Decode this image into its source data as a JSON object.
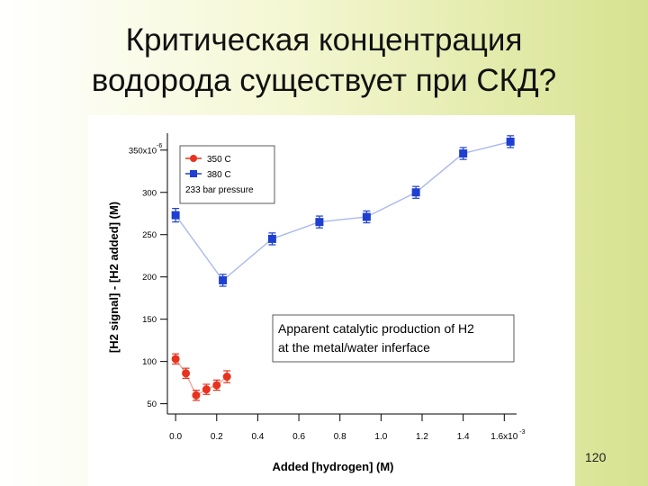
{
  "slide": {
    "title_line1": "Критическая концентрация",
    "title_line2": "водорода существует при СКД?",
    "page_number": "120"
  },
  "colors": {
    "series_350": "#e8321e",
    "series_380": "#1f3fd0",
    "line_380": "#a9b8ee",
    "line_350": "#f2a79b"
  },
  "chart_data": {
    "type": "scatter",
    "xlabel": "Added [hydrogen] (M)",
    "ylabel": "[H2 signal] - [H2 added] (M)",
    "x_ticks": [
      "0.0",
      "0.2",
      "0.4",
      "0.6",
      "0.8",
      "1.0",
      "1.2",
      "1.4",
      "1.6x10"
    ],
    "x_tick_values": [
      0.0,
      0.2,
      0.4,
      0.6,
      0.8,
      1.0,
      1.2,
      1.4,
      1.6
    ],
    "x_exponent": "-3",
    "y_ticks": [
      "50",
      "100",
      "150",
      "200",
      "250",
      "300",
      "350x10"
    ],
    "y_tick_values": [
      50,
      100,
      150,
      200,
      250,
      300,
      350
    ],
    "y_exponent": "-6",
    "xlim": [
      -0.04,
      1.66
    ],
    "ylim": [
      40,
      370
    ],
    "legend": {
      "entries": [
        "350 C",
        "380 C"
      ],
      "note": "233 bar pressure",
      "position": "top-left"
    },
    "annotation": [
      "Apparent catalytic production of H2",
      "at the metal/water inferface"
    ],
    "series": [
      {
        "name": "350 C",
        "x": [
          0.0,
          0.05,
          0.1,
          0.15,
          0.2,
          0.25
        ],
        "y": [
          103,
          86,
          60,
          67,
          72,
          82
        ],
        "err": [
          6,
          6,
          6,
          6,
          6,
          7
        ]
      },
      {
        "name": "380 C",
        "x": [
          0.0,
          0.23,
          0.47,
          0.7,
          0.93,
          1.17,
          1.4,
          1.63
        ],
        "y": [
          273,
          196,
          245,
          265,
          271,
          300,
          346,
          360
        ],
        "err": [
          8,
          7,
          7,
          7,
          7,
          7,
          7,
          7
        ]
      }
    ]
  }
}
